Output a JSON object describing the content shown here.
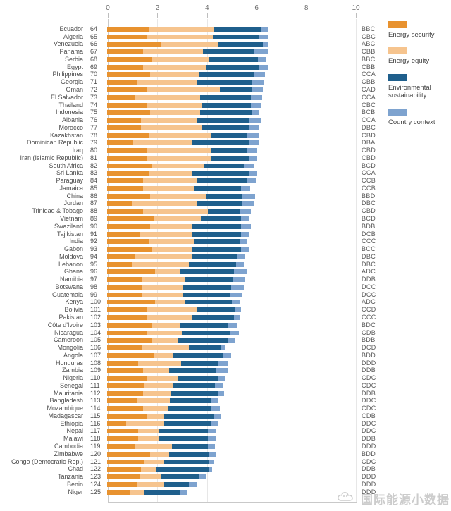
{
  "watermark": {
    "text": "国际能源小数据"
  },
  "legend": [
    {
      "label": "Energy security",
      "color": "#E8922F"
    },
    {
      "label": "Energy equity",
      "color": "#F6C48E"
    },
    {
      "label": "Environmental sustainability",
      "color": "#1F5F8C"
    },
    {
      "label": "Country context",
      "color": "#7EA3CF"
    }
  ],
  "chart_data": {
    "type": "bar",
    "orientation": "horizontal",
    "stacked": true,
    "title": "",
    "xlabel": "",
    "ylabel": "",
    "x_range": [
      0,
      10
    ],
    "x_ticks": [
      0,
      2,
      4,
      6,
      8,
      10
    ],
    "grid": "vertical-light",
    "legend_position": "right",
    "series_names": [
      "Energy security",
      "Energy equity",
      "Environmental sustainability",
      "Country context"
    ],
    "series_colors": [
      "#E8922F",
      "#F6C48E",
      "#1F5F8C",
      "#7EA3CF"
    ],
    "values_note": "values = [energy_security, energy_equity, environmental_sustainability, country_context]",
    "rows": [
      {
        "country": "Ecuador",
        "rank": 64,
        "grade": "BBC",
        "values": [
          1.7,
          2.6,
          1.9,
          0.32
        ]
      },
      {
        "country": "Algeria",
        "rank": 65,
        "grade": "CBC",
        "values": [
          1.58,
          2.68,
          1.87,
          0.38
        ]
      },
      {
        "country": "Venezuela",
        "rank": 66,
        "grade": "ABC",
        "values": [
          2.2,
          2.3,
          1.78,
          0.2
        ]
      },
      {
        "country": "Panama",
        "rank": 67,
        "grade": "CBB",
        "values": [
          1.45,
          2.4,
          2.1,
          0.56
        ]
      },
      {
        "country": "Serbia",
        "rank": 68,
        "grade": "BBC",
        "values": [
          1.78,
          2.34,
          1.96,
          0.34
        ]
      },
      {
        "country": "Egypt",
        "rank": 69,
        "grade": "CBB",
        "values": [
          1.45,
          2.55,
          2.1,
          0.38
        ]
      },
      {
        "country": "Philippines",
        "rank": 70,
        "grade": "CCA",
        "values": [
          1.72,
          1.96,
          2.26,
          0.43
        ]
      },
      {
        "country": "Georgia",
        "rank": 71,
        "grade": "CBB",
        "values": [
          1.2,
          2.4,
          2.24,
          0.48
        ]
      },
      {
        "country": "Oman",
        "rank": 72,
        "grade": "CAD",
        "values": [
          1.63,
          2.92,
          1.3,
          0.42
        ]
      },
      {
        "country": "El Salvador",
        "rank": 73,
        "grade": "CCA",
        "values": [
          1.15,
          2.59,
          2.06,
          0.45
        ]
      },
      {
        "country": "Thailand",
        "rank": 74,
        "grade": "CBC",
        "values": [
          1.58,
          2.25,
          1.97,
          0.42
        ]
      },
      {
        "country": "Indonesia",
        "rank": 75,
        "grade": "BCB",
        "values": [
          1.72,
          2.02,
          2.11,
          0.3
        ]
      },
      {
        "country": "Albania",
        "rank": 76,
        "grade": "CCA",
        "values": [
          1.35,
          2.3,
          2.1,
          0.43
        ]
      },
      {
        "country": "Morocco",
        "rank": 77,
        "grade": "DBC",
        "values": [
          1.35,
          2.45,
          1.9,
          0.45
        ]
      },
      {
        "country": "Kazakhstan",
        "rank": 78,
        "grade": "CBD",
        "values": [
          1.68,
          2.52,
          1.45,
          0.48
        ]
      },
      {
        "country": "Dominican Republic",
        "rank": 79,
        "grade": "DBA",
        "values": [
          1.05,
          2.35,
          2.3,
          0.43
        ]
      },
      {
        "country": "Iraq",
        "rank": 80,
        "grade": "CBD",
        "values": [
          1.58,
          2.59,
          1.48,
          0.38
        ]
      },
      {
        "country": "Iran (Islamic Republic)",
        "rank": 81,
        "grade": "CBD",
        "values": [
          1.58,
          2.62,
          1.5,
          0.36
        ]
      },
      {
        "country": "South Africa",
        "rank": 82,
        "grade": "BCD",
        "values": [
          1.78,
          2.15,
          1.57,
          0.44
        ]
      },
      {
        "country": "Sri Lanka",
        "rank": 83,
        "grade": "CCA",
        "values": [
          1.68,
          1.77,
          2.25,
          0.33
        ]
      },
      {
        "country": "Paraguay",
        "rank": 84,
        "grade": "CCB",
        "values": [
          1.45,
          2.2,
          2.01,
          0.33
        ]
      },
      {
        "country": "Jamaica",
        "rank": 85,
        "grade": "CCB",
        "values": [
          1.45,
          2.06,
          1.9,
          0.35
        ]
      },
      {
        "country": "China",
        "rank": 86,
        "grade": "BBD",
        "values": [
          1.72,
          2.25,
          1.49,
          0.52
        ]
      },
      {
        "country": "Jordan",
        "rank": 87,
        "grade": "DBC",
        "values": [
          1.0,
          2.64,
          1.82,
          0.48
        ]
      },
      {
        "country": "Trinidad & Tobago",
        "rank": 88,
        "grade": "CBD",
        "values": [
          1.45,
          2.62,
          1.29,
          0.44
        ]
      },
      {
        "country": "Vietnam",
        "rank": 89,
        "grade": "BCD",
        "values": [
          1.87,
          1.91,
          1.63,
          0.34
        ]
      },
      {
        "country": "Swaziland",
        "rank": 90,
        "grade": "BDB",
        "values": [
          1.72,
          1.68,
          2.0,
          0.4
        ]
      },
      {
        "country": "Tajikistan",
        "rank": 91,
        "grade": "DCB",
        "values": [
          1.3,
          2.15,
          1.95,
          0.3
        ]
      },
      {
        "country": "India",
        "rank": 92,
        "grade": "CCC",
        "values": [
          1.68,
          1.82,
          1.86,
          0.29
        ]
      },
      {
        "country": "Gabon",
        "rank": 93,
        "grade": "BCC",
        "values": [
          1.78,
          1.67,
          1.95,
          0.3
        ]
      },
      {
        "country": "Moldova",
        "rank": 94,
        "grade": "DBC",
        "values": [
          1.1,
          2.3,
          1.86,
          0.29
        ]
      },
      {
        "country": "Lebanon",
        "rank": 95,
        "grade": "DBC",
        "values": [
          1.0,
          2.3,
          1.9,
          0.3
        ]
      },
      {
        "country": "Ghana",
        "rank": 96,
        "grade": "ADC",
        "values": [
          1.92,
          1.04,
          2.16,
          0.53
        ]
      },
      {
        "country": "Namibia",
        "rank": 97,
        "grade": "DDB",
        "values": [
          1.4,
          1.72,
          1.96,
          0.48
        ]
      },
      {
        "country": "Botswana",
        "rank": 98,
        "grade": "DCC",
        "values": [
          1.4,
          1.65,
          1.95,
          0.5
        ]
      },
      {
        "country": "Guatemala",
        "rank": 99,
        "grade": "DCC",
        "values": [
          1.38,
          1.67,
          1.93,
          0.47
        ]
      },
      {
        "country": "Kenya",
        "rank": 100,
        "grade": "ADC",
        "values": [
          1.92,
          1.2,
          1.91,
          0.34
        ]
      },
      {
        "country": "Bolivia",
        "rank": 101,
        "grade": "CCD",
        "values": [
          1.63,
          2.01,
          1.53,
          0.23
        ]
      },
      {
        "country": "Pakistan",
        "rank": 102,
        "grade": "CCC",
        "values": [
          1.63,
          1.82,
          1.67,
          0.24
        ]
      },
      {
        "country": "Côte d'Ivoire",
        "rank": 103,
        "grade": "BDC",
        "values": [
          1.78,
          1.18,
          1.92,
          0.35
        ]
      },
      {
        "country": "Nicaragua",
        "rank": 104,
        "grade": "CDB",
        "values": [
          1.63,
          1.37,
          1.94,
          0.36
        ]
      },
      {
        "country": "Cameroon",
        "rank": 105,
        "grade": "BDB",
        "values": [
          1.82,
          1.01,
          2.07,
          0.27
        ]
      },
      {
        "country": "Mongolia",
        "rank": 106,
        "grade": "DCD",
        "values": [
          1.39,
          1.91,
          1.3,
          0.18
        ]
      },
      {
        "country": "Angola",
        "rank": 107,
        "grade": "BDD",
        "values": [
          1.87,
          0.81,
          2.0,
          0.32
        ]
      },
      {
        "country": "Honduras",
        "rank": 108,
        "grade": "DDD",
        "values": [
          1.25,
          1.72,
          1.48,
          0.45
        ]
      },
      {
        "country": "Zambia",
        "rank": 109,
        "grade": "DDB",
        "values": [
          1.45,
          1.06,
          1.9,
          0.44
        ]
      },
      {
        "country": "Nigeria",
        "rank": 110,
        "grade": "CDC",
        "values": [
          1.63,
          1.2,
          1.67,
          0.26
        ]
      },
      {
        "country": "Senegal",
        "rank": 111,
        "grade": "CDC",
        "values": [
          1.48,
          1.15,
          1.72,
          0.35
        ]
      },
      {
        "country": "Mauritania",
        "rank": 112,
        "grade": "DDB",
        "values": [
          1.45,
          1.1,
          1.91,
          0.25
        ]
      },
      {
        "country": "Bangladesh",
        "rank": 113,
        "grade": "DDC",
        "values": [
          1.2,
          1.34,
          1.63,
          0.33
        ]
      },
      {
        "country": "Mozambique",
        "rank": 114,
        "grade": "CDC",
        "values": [
          1.45,
          1.0,
          1.76,
          0.35
        ]
      },
      {
        "country": "Madagascar",
        "rank": 115,
        "grade": "CDB",
        "values": [
          1.58,
          0.72,
          2.0,
          0.28
        ]
      },
      {
        "country": "Ethiopia",
        "rank": 116,
        "grade": "DDC",
        "values": [
          0.77,
          1.53,
          1.87,
          0.28
        ]
      },
      {
        "country": "Nepal",
        "rank": 117,
        "grade": "DDC",
        "values": [
          1.24,
          0.82,
          2.01,
          0.33
        ]
      },
      {
        "country": "Malawi",
        "rank": 118,
        "grade": "DDB",
        "values": [
          1.25,
          0.85,
          1.97,
          0.33
        ]
      },
      {
        "country": "Cambodia",
        "rank": 119,
        "grade": "DDD",
        "values": [
          1.15,
          1.45,
          1.47,
          0.28
        ]
      },
      {
        "country": "Zimbabwe",
        "rank": 120,
        "grade": "BDD",
        "values": [
          1.72,
          0.77,
          1.61,
          0.27
        ]
      },
      {
        "country": "Congo (Democratic Rep.)",
        "rank": 121,
        "grade": "CDC",
        "values": [
          1.48,
          0.82,
          1.8,
          0.2
        ]
      },
      {
        "country": "Chad",
        "rank": 122,
        "grade": "DDB",
        "values": [
          1.35,
          0.61,
          2.16,
          0.1
        ]
      },
      {
        "country": "Tanzania",
        "rank": 123,
        "grade": "DDD",
        "values": [
          1.3,
          0.9,
          1.48,
          0.34
        ]
      },
      {
        "country": "Benin",
        "rank": 124,
        "grade": "DDD",
        "values": [
          1.2,
          1.1,
          1.0,
          0.34
        ]
      },
      {
        "country": "Niger",
        "rank": 125,
        "grade": "DDD",
        "values": [
          0.9,
          0.58,
          1.45,
          0.27
        ]
      }
    ]
  }
}
